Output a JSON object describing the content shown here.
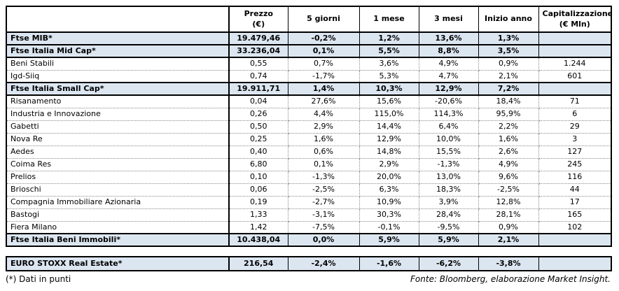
{
  "colors": {
    "highlight": "#dce6f1",
    "border": "#000000"
  },
  "table": {
    "headers": {
      "name": "",
      "prezzo": "Prezzo\n(€)",
      "g5": "5 giorni",
      "m1": "1 mese",
      "m3": "3 mesi",
      "inizio": "Inizio anno",
      "cap": "Capitalizzazione\n(€ Mln)"
    },
    "rows": [
      {
        "type": "index",
        "name": "Ftse MIB*",
        "prezzo": "19.479,46",
        "g5": "-0,2%",
        "m1": "1,2%",
        "m3": "13,6%",
        "inizio": "1,3%",
        "cap": ""
      },
      {
        "type": "index",
        "name": "Ftse Italia Mid Cap*",
        "prezzo": "33.236,04",
        "g5": "0,1%",
        "m1": "5,5%",
        "m3": "8,8%",
        "inizio": "3,5%",
        "cap": ""
      },
      {
        "type": "stock",
        "name": "Beni Stabili",
        "prezzo": "0,55",
        "g5": "0,7%",
        "m1": "3,6%",
        "m3": "4,9%",
        "inizio": "0,9%",
        "cap": "1.244"
      },
      {
        "type": "stock",
        "name": "Igd-Siiq",
        "prezzo": "0,74",
        "g5": "-1,7%",
        "m1": "5,3%",
        "m3": "4,7%",
        "inizio": "2,1%",
        "cap": "601"
      },
      {
        "type": "index",
        "name": "Ftse Italia Small Cap*",
        "prezzo": "19.911,71",
        "g5": "1,4%",
        "m1": "10,3%",
        "m3": "12,9%",
        "inizio": "7,2%",
        "cap": ""
      },
      {
        "type": "stock",
        "name": "Risanamento",
        "prezzo": "0,04",
        "g5": "27,6%",
        "m1": "15,6%",
        "m3": "-20,6%",
        "inizio": "18,4%",
        "cap": "71"
      },
      {
        "type": "stock",
        "name": "Industria e Innovazione",
        "prezzo": "0,26",
        "g5": "4,4%",
        "m1": "115,0%",
        "m3": "114,3%",
        "inizio": "95,9%",
        "cap": "6"
      },
      {
        "type": "stock",
        "name": "Gabetti",
        "prezzo": "0,50",
        "g5": "2,9%",
        "m1": "14,4%",
        "m3": "6,4%",
        "inizio": "2,2%",
        "cap": "29"
      },
      {
        "type": "stock",
        "name": "Nova Re",
        "prezzo": "0,25",
        "g5": "1,6%",
        "m1": "12,9%",
        "m3": "10,0%",
        "inizio": "1,6%",
        "cap": "3"
      },
      {
        "type": "stock",
        "name": "Aedes",
        "prezzo": "0,40",
        "g5": "0,6%",
        "m1": "14,8%",
        "m3": "15,5%",
        "inizio": "2,6%",
        "cap": "127"
      },
      {
        "type": "stock",
        "name": "Coima Res",
        "prezzo": "6,80",
        "g5": "0,1%",
        "m1": "2,9%",
        "m3": "-1,3%",
        "inizio": "4,9%",
        "cap": "245"
      },
      {
        "type": "stock",
        "name": "Prelios",
        "prezzo": "0,10",
        "g5": "-1,3%",
        "m1": "20,0%",
        "m3": "13,0%",
        "inizio": "9,6%",
        "cap": "116"
      },
      {
        "type": "stock",
        "name": "Brioschi",
        "prezzo": "0,06",
        "g5": "-2,5%",
        "m1": "6,3%",
        "m3": "18,3%",
        "inizio": "-2,5%",
        "cap": "44"
      },
      {
        "type": "stock",
        "name": "Compagnia Immobiliare Azionaria",
        "prezzo": "0,19",
        "g5": "-2,7%",
        "m1": "10,9%",
        "m3": "3,9%",
        "inizio": "12,8%",
        "cap": "17"
      },
      {
        "type": "stock",
        "name": "Bastogi",
        "prezzo": "1,33",
        "g5": "-3,1%",
        "m1": "30,3%",
        "m3": "28,4%",
        "inizio": "28,1%",
        "cap": "165"
      },
      {
        "type": "stock",
        "name": "Fiera Milano",
        "prezzo": "1,42",
        "g5": "-7,5%",
        "m1": "-0,1%",
        "m3": "-9,5%",
        "inizio": "0,9%",
        "cap": "102"
      },
      {
        "type": "index",
        "name": "Ftse Italia Beni Immobili*",
        "prezzo": "10.438,04",
        "g5": "0,0%",
        "m1": "5,9%",
        "m3": "5,9%",
        "inizio": "2,1%",
        "cap": ""
      }
    ]
  },
  "euro_stoxx": {
    "rows": [
      {
        "type": "index",
        "name": "EURO STOXX Real Estate*",
        "prezzo": "216,54",
        "g5": "-2,4%",
        "m1": "-1,6%",
        "m3": "-6,2%",
        "inizio": "-3,8%",
        "cap": ""
      }
    ]
  },
  "footer": {
    "note": "(*) Dati in punti",
    "source": "Fonte: Bloomberg, elaborazione Market Insight."
  }
}
